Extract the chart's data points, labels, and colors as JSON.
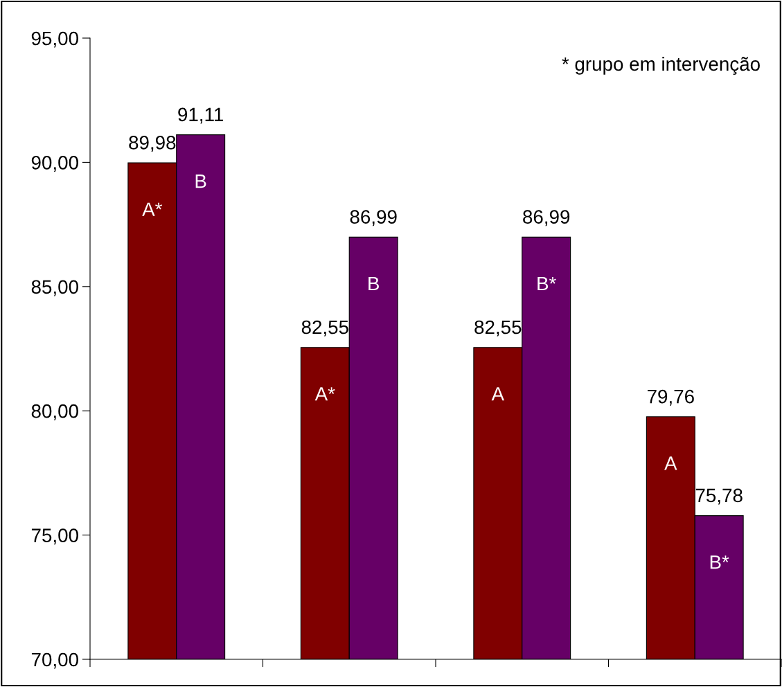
{
  "chart_data": {
    "type": "bar",
    "categories": [
      null,
      null,
      null,
      null
    ],
    "series": [
      {
        "color": "#800000",
        "values": [
          89.98,
          82.55,
          82.55,
          79.76
        ],
        "value_labels": [
          "89,98",
          "82,55",
          "82,55",
          "79,76"
        ]
      },
      {
        "color": "#660066",
        "values": [
          91.11,
          86.99,
          86.99,
          75.78
        ],
        "value_labels": [
          "91,11",
          "86,99",
          "86,99",
          "75,78"
        ]
      }
    ],
    "ylim": [
      70,
      95
    ],
    "yticks": [
      {
        "value": 70,
        "label": "70,00"
      },
      {
        "value": 75,
        "label": "75,00"
      },
      {
        "value": 80,
        "label": "80,00"
      },
      {
        "value": 85,
        "label": "85,00"
      },
      {
        "value": 90,
        "label": "90,00"
      },
      {
        "value": 95,
        "label": "95,00"
      }
    ],
    "grid": false,
    "legend": false,
    "annotations": [
      "* grupo em intervenção",
      "A*",
      "B",
      "A*",
      "B",
      "A",
      "B*",
      "A",
      "B*"
    ]
  }
}
